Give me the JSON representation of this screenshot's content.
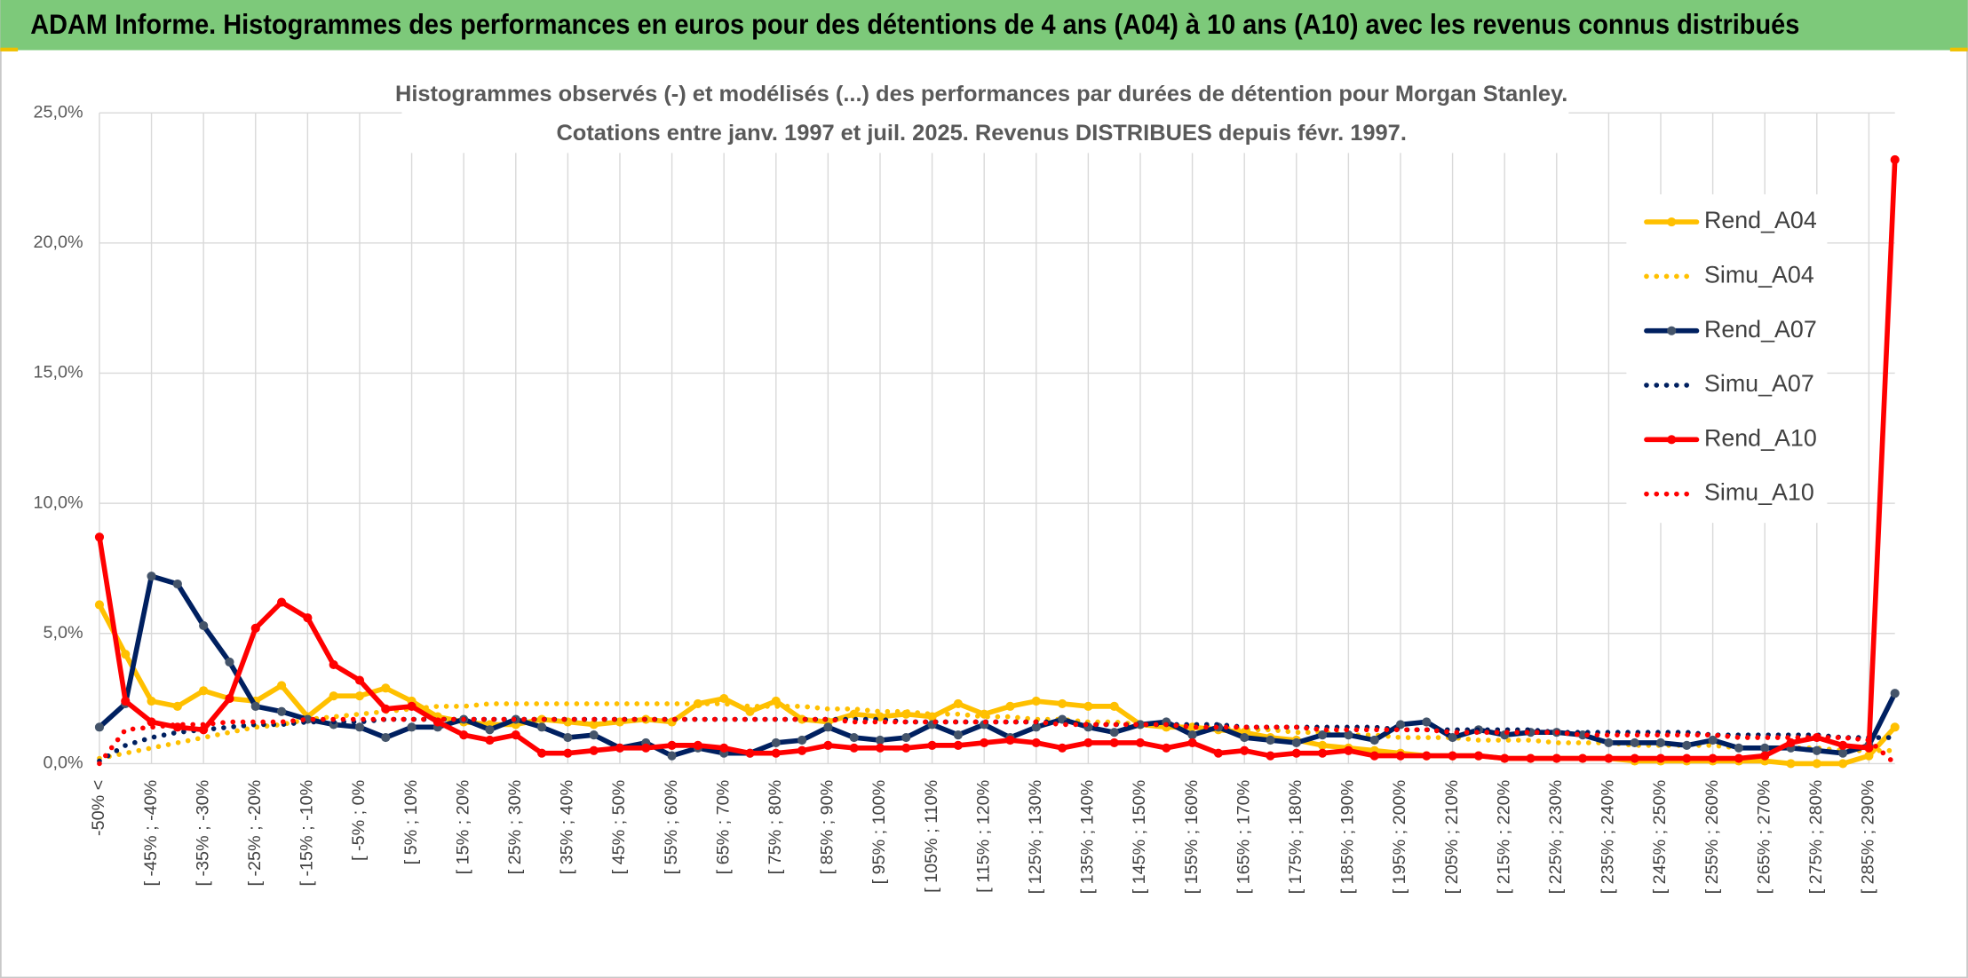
{
  "header": {
    "title": "ADAM Informe. Histogrammes des performances en euros pour des détentions de 4 ans (A04) à 10 ans (A10) avec les revenus connus distribués"
  },
  "chart_data": {
    "type": "line",
    "title": "Histogrammes observés (-) et modélisés (...) des performances par durées de détention pour Morgan Stanley.",
    "subtitle": "Cotations entre janv. 1997 et juil. 2025. Revenus DISTRIBUES depuis févr. 1997.",
    "categories": [
      "-50% <",
      null,
      "[ -45% ; -40%",
      null,
      "[ -35% ; -30%",
      null,
      "[ -25% ; -20%",
      null,
      "[ -15% ; -10%",
      null,
      "[ -5% ; 0%",
      null,
      "[ 5% ; 10%",
      null,
      "[ 15% ; 20%",
      null,
      "[ 25% ; 30%",
      null,
      "[ 35% ; 40%",
      null,
      "[ 45% ; 50%",
      null,
      "[ 55% ; 60%",
      null,
      "[ 65% ; 70%",
      null,
      "[ 75% ; 80%",
      null,
      "[ 85% ; 90%",
      null,
      "[ 95% ; 100%",
      null,
      "[ 105% ; 110%",
      null,
      "[ 115% ; 120%",
      null,
      "[ 125% ; 130%",
      null,
      "[ 135% ; 140%",
      null,
      "[ 145% ; 150%",
      null,
      "[ 155% ; 160%",
      null,
      "[ 165% ; 170%",
      null,
      "[ 175% ; 180%",
      null,
      "[ 185% ; 190%",
      null,
      "[ 195% ; 200%",
      null,
      "[ 205% ; 210%",
      null,
      "[ 215% ; 220%",
      null,
      "[ 225% ; 230%",
      null,
      "[ 235% ; 240%",
      null,
      "[ 245% ; 250%",
      null,
      "[ 255% ; 260%",
      null,
      "[ 265% ; 270%",
      null,
      "[ 275% ; 280%",
      null,
      "[ 285% ; 290%",
      null
    ],
    "series": [
      {
        "name": "Rend_A04",
        "color": "#ffc000",
        "marker": "#ffc000",
        "style": "solid",
        "values": [
          6.1,
          4.2,
          2.4,
          2.2,
          2.8,
          2.5,
          2.4,
          3.0,
          1.8,
          2.6,
          2.6,
          2.9,
          2.4,
          1.8,
          1.6,
          1.5,
          1.5,
          1.7,
          1.6,
          1.5,
          1.6,
          1.7,
          1.6,
          2.3,
          2.5,
          2.0,
          2.4,
          1.7,
          1.6,
          1.9,
          1.8,
          1.9,
          1.8,
          2.3,
          1.9,
          2.2,
          2.4,
          2.3,
          2.2,
          2.2,
          1.5,
          1.4,
          1.4,
          1.3,
          1.2,
          1.0,
          0.9,
          0.7,
          0.6,
          0.5,
          0.4,
          0.3,
          0.3,
          0.3,
          0.2,
          0.2,
          0.2,
          0.2,
          0.2,
          0.1,
          0.1,
          0.1,
          0.1,
          0.1,
          0.1,
          0.0,
          0.0,
          0.0,
          0.3,
          1.4
        ]
      },
      {
        "name": "Simu_A04",
        "color": "#ffc000",
        "style": "dotted",
        "values": [
          0.2,
          0.4,
          0.6,
          0.8,
          1.0,
          1.2,
          1.4,
          1.5,
          1.7,
          1.8,
          1.9,
          2.0,
          2.1,
          2.2,
          2.2,
          2.3,
          2.3,
          2.3,
          2.3,
          2.3,
          2.3,
          2.3,
          2.3,
          2.3,
          2.3,
          2.2,
          2.2,
          2.2,
          2.1,
          2.1,
          2.0,
          2.0,
          1.9,
          1.9,
          1.8,
          1.8,
          1.7,
          1.7,
          1.6,
          1.6,
          1.5,
          1.5,
          1.4,
          1.4,
          1.3,
          1.3,
          1.2,
          1.2,
          1.1,
          1.1,
          1.0,
          1.0,
          1.0,
          0.9,
          0.9,
          0.9,
          0.8,
          0.8,
          0.8,
          0.7,
          0.7,
          0.7,
          0.7,
          0.6,
          0.6,
          0.6,
          0.6,
          0.5,
          0.5,
          0.5
        ]
      },
      {
        "name": "Rend_A07",
        "color": "#002060",
        "marker": "#44546a",
        "style": "solid",
        "values": [
          1.4,
          2.3,
          7.2,
          6.9,
          5.3,
          3.9,
          2.2,
          2.0,
          1.7,
          1.5,
          1.4,
          1.0,
          1.4,
          1.4,
          1.7,
          1.3,
          1.7,
          1.4,
          1.0,
          1.1,
          0.6,
          0.8,
          0.3,
          0.6,
          0.4,
          0.4,
          0.8,
          0.9,
          1.4,
          1.0,
          0.9,
          1.0,
          1.5,
          1.1,
          1.5,
          1.0,
          1.4,
          1.7,
          1.4,
          1.2,
          1.5,
          1.6,
          1.1,
          1.4,
          1.0,
          0.9,
          0.8,
          1.1,
          1.1,
          0.9,
          1.5,
          1.6,
          1.0,
          1.3,
          1.1,
          1.2,
          1.2,
          1.1,
          0.8,
          0.8,
          0.8,
          0.7,
          0.9,
          0.6,
          0.6,
          0.6,
          0.5,
          0.4,
          0.7,
          2.7
        ]
      },
      {
        "name": "Simu_A07",
        "color": "#002060",
        "style": "dotted",
        "values": [
          0.1,
          0.7,
          1.0,
          1.2,
          1.3,
          1.4,
          1.5,
          1.5,
          1.6,
          1.6,
          1.6,
          1.7,
          1.7,
          1.7,
          1.7,
          1.7,
          1.7,
          1.7,
          1.7,
          1.7,
          1.7,
          1.7,
          1.7,
          1.7,
          1.7,
          1.7,
          1.7,
          1.7,
          1.7,
          1.7,
          1.7,
          1.6,
          1.6,
          1.6,
          1.6,
          1.6,
          1.6,
          1.6,
          1.5,
          1.5,
          1.5,
          1.5,
          1.5,
          1.5,
          1.4,
          1.4,
          1.4,
          1.4,
          1.4,
          1.4,
          1.3,
          1.3,
          1.3,
          1.3,
          1.3,
          1.3,
          1.2,
          1.2,
          1.2,
          1.2,
          1.2,
          1.2,
          1.1,
          1.1,
          1.1,
          1.1,
          1.1,
          1.0,
          1.0,
          1.0
        ]
      },
      {
        "name": "Rend_A10",
        "color": "#ff0000",
        "marker": "#ff0000",
        "style": "solid",
        "values": [
          8.7,
          2.4,
          1.6,
          1.4,
          1.3,
          2.5,
          5.2,
          6.2,
          5.6,
          3.8,
          3.2,
          2.1,
          2.2,
          1.6,
          1.1,
          0.9,
          1.1,
          0.4,
          0.4,
          0.5,
          0.6,
          0.6,
          0.7,
          0.7,
          0.6,
          0.4,
          0.4,
          0.5,
          0.7,
          0.6,
          0.6,
          0.6,
          0.7,
          0.7,
          0.8,
          0.9,
          0.8,
          0.6,
          0.8,
          0.8,
          0.8,
          0.6,
          0.8,
          0.4,
          0.5,
          0.3,
          0.4,
          0.4,
          0.5,
          0.3,
          0.3,
          0.3,
          0.3,
          0.3,
          0.2,
          0.2,
          0.2,
          0.2,
          0.2,
          0.2,
          0.2,
          0.2,
          0.2,
          0.2,
          0.3,
          0.8,
          1.0,
          0.7,
          0.6,
          23.2
        ]
      },
      {
        "name": "Simu_A10",
        "color": "#ff0000",
        "style": "dotted",
        "values": [
          0.0,
          1.3,
          1.4,
          1.5,
          1.5,
          1.6,
          1.6,
          1.6,
          1.7,
          1.7,
          1.7,
          1.7,
          1.7,
          1.7,
          1.7,
          1.7,
          1.7,
          1.7,
          1.7,
          1.7,
          1.7,
          1.7,
          1.7,
          1.7,
          1.7,
          1.7,
          1.7,
          1.7,
          1.7,
          1.6,
          1.6,
          1.6,
          1.6,
          1.6,
          1.6,
          1.6,
          1.6,
          1.5,
          1.5,
          1.5,
          1.5,
          1.5,
          1.4,
          1.4,
          1.4,
          1.4,
          1.4,
          1.3,
          1.3,
          1.3,
          1.3,
          1.3,
          1.2,
          1.2,
          1.2,
          1.2,
          1.2,
          1.1,
          1.1,
          1.1,
          1.1,
          1.1,
          1.1,
          1.0,
          1.0,
          1.0,
          1.0,
          1.0,
          0.9,
          0.0
        ]
      }
    ],
    "ylim": [
      0,
      25
    ],
    "yticks": [
      {
        "value": 0,
        "label": "0,0%"
      },
      {
        "value": 5,
        "label": "5,0%"
      },
      {
        "value": 10,
        "label": "10,0%"
      },
      {
        "value": 15,
        "label": "15,0%"
      },
      {
        "value": 20,
        "label": "20,0%"
      },
      {
        "value": 25,
        "label": "25,0%"
      }
    ],
    "grid": true,
    "legend": "right"
  }
}
